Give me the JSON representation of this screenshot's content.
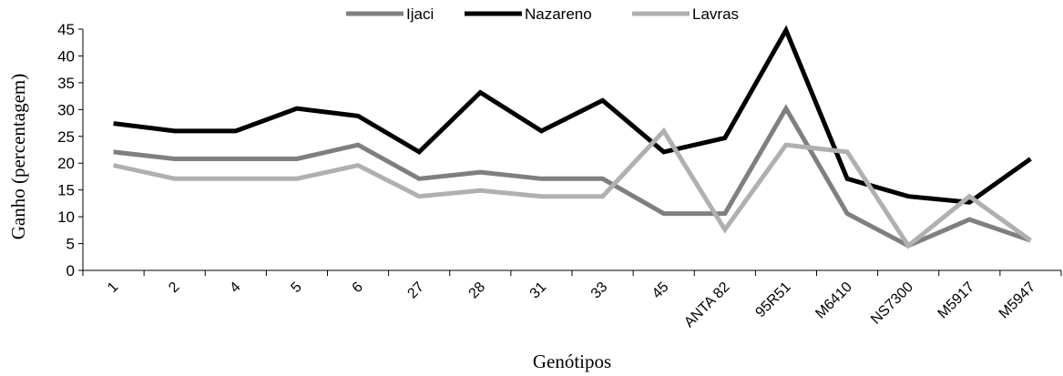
{
  "chart_data": {
    "type": "line",
    "title": "",
    "xlabel": "Genótipos",
    "ylabel": "Ganho (percentagem)",
    "ylim": [
      0,
      45
    ],
    "yticks": [
      0,
      5,
      10,
      15,
      20,
      25,
      30,
      35,
      40,
      45
    ],
    "grid": false,
    "legend_position": "top-center",
    "categories": [
      "1",
      "2",
      "4",
      "5",
      "6",
      "27",
      "28",
      "31",
      "33",
      "45",
      "ANTA 82",
      "95R51",
      "M6410",
      "NS7300",
      "M5917",
      "M5947"
    ],
    "series": [
      {
        "name": "Ijaci",
        "color": "#7f7f7f",
        "values": [
          22.1,
          20.8,
          20.8,
          20.8,
          23.4,
          17.1,
          18.3,
          17.1,
          17.1,
          10.6,
          10.6,
          30.2,
          10.6,
          4.6,
          9.5,
          5.6
        ]
      },
      {
        "name": "Nazareno",
        "color": "#000000",
        "values": [
          27.4,
          26.0,
          26.0,
          30.2,
          28.8,
          22.1,
          33.2,
          26.0,
          31.7,
          22.1,
          24.7,
          44.8,
          17.1,
          13.8,
          12.7,
          20.8
        ]
      },
      {
        "name": "Lavras",
        "color": "#b0b0b0",
        "values": [
          19.6,
          17.1,
          17.1,
          17.1,
          19.6,
          13.8,
          14.9,
          13.8,
          13.8,
          26.0,
          7.6,
          23.4,
          22.1,
          4.6,
          13.8,
          5.6
        ]
      }
    ]
  }
}
